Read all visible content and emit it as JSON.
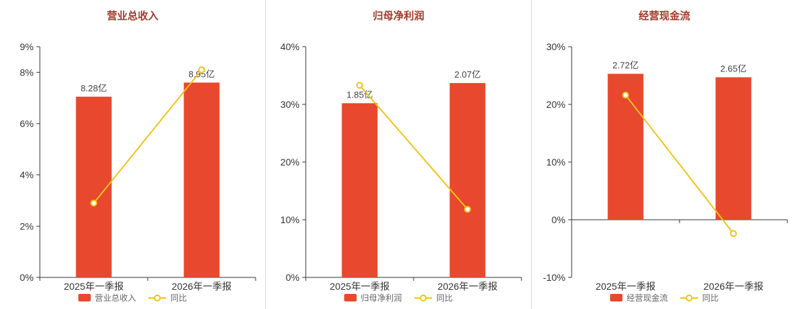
{
  "colors": {
    "bar": "#e8482d",
    "line": "#f0c419",
    "title": "#a23b28",
    "axis": "#333333",
    "label": "#444444",
    "legend_text": "#666666",
    "divider": "#dddddd"
  },
  "chart_data": [
    {
      "type": "bar",
      "title": "营业总收入",
      "categories": [
        "2025年一季报",
        "2026年一季报"
      ],
      "series": [
        {
          "name": "营业总收入",
          "type": "bar",
          "labels": [
            "8.28亿",
            "8.95亿"
          ],
          "plotted_pct": [
            7.05,
            7.6
          ]
        },
        {
          "name": "同比",
          "type": "line",
          "values_pct": [
            2.9,
            8.1
          ]
        }
      ],
      "ylim": [
        0,
        9
      ],
      "yticks": [
        0,
        2,
        4,
        6,
        8,
        9
      ],
      "ytick_labels": [
        "0%",
        "2%",
        "4%",
        "6%",
        "8%",
        "9%"
      ],
      "grid": false,
      "legend_position": "bottom"
    },
    {
      "type": "bar",
      "title": "归母净利润",
      "categories": [
        "2025年一季报",
        "2026年一季报"
      ],
      "series": [
        {
          "name": "归母净利润",
          "type": "bar",
          "labels": [
            "1.85亿",
            "2.07亿"
          ],
          "plotted_pct": [
            30.2,
            33.7
          ]
        },
        {
          "name": "同比",
          "type": "line",
          "values_pct": [
            33.3,
            11.8
          ]
        }
      ],
      "ylim": [
        0,
        40
      ],
      "yticks": [
        0,
        10,
        20,
        30,
        40
      ],
      "ytick_labels": [
        "0%",
        "10%",
        "20%",
        "30%",
        "40%"
      ],
      "grid": false,
      "legend_position": "bottom"
    },
    {
      "type": "bar",
      "title": "经营现金流",
      "categories": [
        "2025年一季报",
        "2026年一季报"
      ],
      "series": [
        {
          "name": "经营现金流",
          "type": "bar",
          "labels": [
            "2.72亿",
            "2.65亿"
          ],
          "plotted_pct": [
            25.3,
            24.7
          ]
        },
        {
          "name": "同比",
          "type": "line",
          "values_pct": [
            21.6,
            -2.4
          ]
        }
      ],
      "ylim": [
        -10,
        30
      ],
      "yticks": [
        -10,
        0,
        10,
        20,
        30
      ],
      "ytick_labels": [
        "-10%",
        "0%",
        "10%",
        "20%",
        "30%"
      ],
      "grid": false,
      "legend_position": "bottom"
    }
  ]
}
